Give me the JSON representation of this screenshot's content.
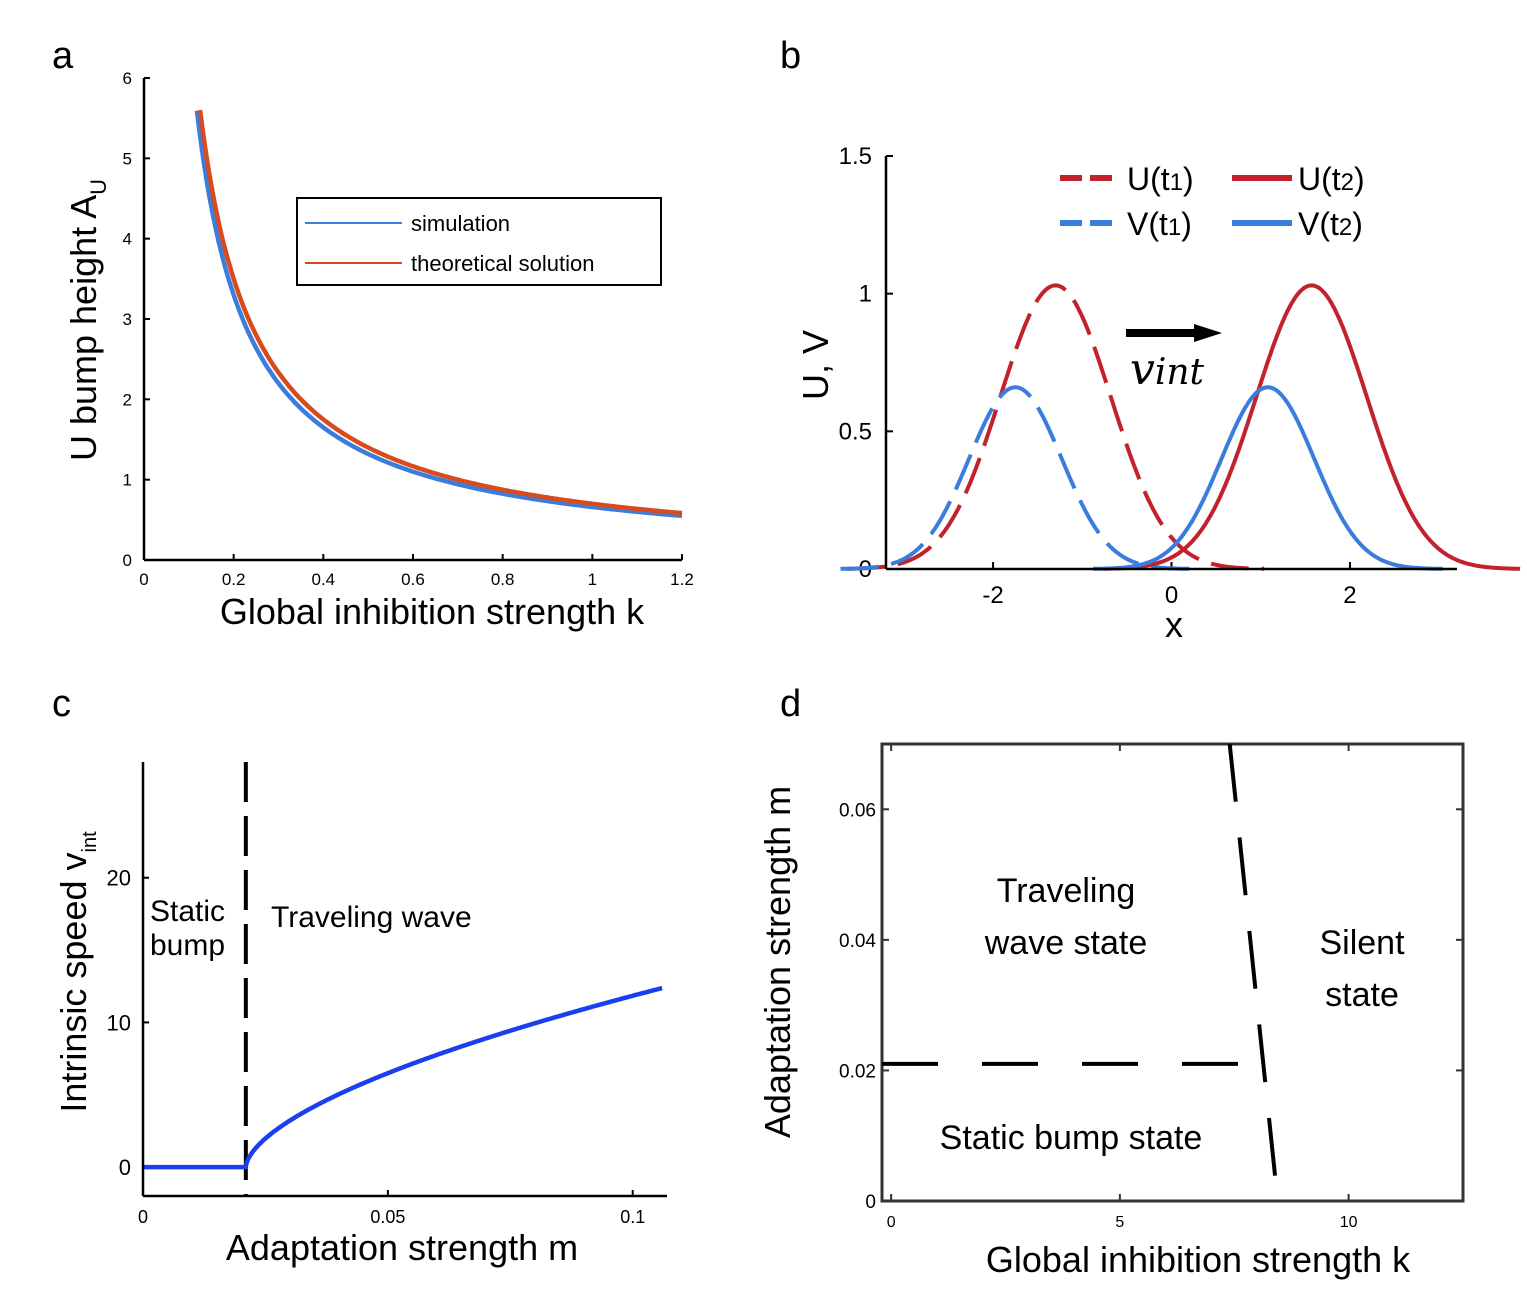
{
  "colors": {
    "blue": "#3b7ddd",
    "red": "#d84b1e",
    "darkred": "#c2222d",
    "curve_blue": "#1a3ef0",
    "legend_blue": "#3b7ddd"
  },
  "chart_data": [
    {
      "panel": "a",
      "type": "line",
      "xlabel": "Global inhibition strength k",
      "ylabel": "U bump height A",
      "ylabel_sub": "U",
      "xlim": [
        0,
        1.2
      ],
      "ylim": [
        0,
        6
      ],
      "xticks": [
        "0",
        "0.2",
        "0.4",
        "0.6",
        "0.8",
        "1",
        "1.2"
      ],
      "yticks": [
        "0",
        "1",
        "2",
        "3",
        "4",
        "5",
        "6"
      ],
      "legend": [
        "simulation",
        "theoretical solution"
      ],
      "series": [
        {
          "name": "simulation",
          "color": "#3b7ddd",
          "formula": "0.66/k",
          "x_start": 0.1,
          "x_end": 1.2
        },
        {
          "name": "theoretical solution",
          "color": "#d84b1e",
          "formula": "0.70/k",
          "x_start": 0.1,
          "x_end": 1.2
        }
      ]
    },
    {
      "panel": "b",
      "type": "line",
      "xlabel": "x",
      "ylabel": "U, V",
      "xlim": [
        -3.2,
        3.2
      ],
      "ylim": [
        0,
        1.5
      ],
      "xticks": [
        "-2",
        "0",
        "2"
      ],
      "yticks": [
        "0",
        "0.5",
        "1",
        "1.5"
      ],
      "annotation": "v",
      "annotation_sub": "int",
      "legend": [
        {
          "label": "U(t",
          "sub": "1",
          "close": ")",
          "style": "dashed",
          "color": "#c2222d"
        },
        {
          "label": "U(t",
          "sub": "2",
          "close": ")",
          "style": "solid",
          "color": "#c2222d"
        },
        {
          "label": "V(t",
          "sub": "1",
          "close": ")",
          "style": "dashed",
          "color": "#3b7ddd"
        },
        {
          "label": "V(t",
          "sub": "2",
          "close": ")",
          "style": "solid",
          "color": "#3b7ddd"
        }
      ],
      "series": [
        {
          "name": "U(t1)",
          "center": -1.3,
          "amplitude": 1.03,
          "width": 0.62,
          "style": "dashed",
          "color": "#c2222d"
        },
        {
          "name": "U(t2)",
          "center": 1.57,
          "amplitude": 1.03,
          "width": 0.62,
          "style": "solid",
          "color": "#c2222d"
        },
        {
          "name": "V(t1)",
          "center": -1.75,
          "amplitude": 0.66,
          "width": 0.52,
          "style": "dashed",
          "color": "#3b7ddd"
        },
        {
          "name": "V(t2)",
          "center": 1.08,
          "amplitude": 0.66,
          "width": 0.52,
          "style": "solid",
          "color": "#3b7ddd"
        }
      ]
    },
    {
      "panel": "c",
      "type": "line",
      "xlabel": "Adaptation strength m",
      "ylabel": "Intrinsic speed v",
      "ylabel_sub": "int",
      "xlim": [
        0,
        0.107
      ],
      "ylim": [
        -2,
        28
      ],
      "xticks": [
        "0",
        "0.05",
        "0.1"
      ],
      "yticks": [
        "0",
        "10",
        "20"
      ],
      "threshold_m": 0.021,
      "region_left": [
        "Static",
        "bump"
      ],
      "region_right": "Traveling wave",
      "series": [
        {
          "name": "speed",
          "color": "#1a3ef0",
          "formula": "v = 0 for m<0.021; v = 54.3*(m-0.021)^0.6 otherwise",
          "x_end": 0.106
        }
      ]
    },
    {
      "panel": "d",
      "type": "phase-diagram",
      "xlabel": "Global inhibition strength k",
      "ylabel": "Adaptation strength m",
      "xlim": [
        -0.2,
        12.5
      ],
      "ylim": [
        0,
        0.07
      ],
      "xticks": [
        "0",
        "5",
        "10"
      ],
      "yticks": [
        "0",
        "0.02",
        "0.04",
        "0.06"
      ],
      "regions": {
        "traveling": [
          "Traveling",
          "wave state"
        ],
        "silent": [
          "Silent",
          "state"
        ],
        "static": "Static bump state"
      },
      "boundaries": {
        "horizontal": {
          "m": 0.021,
          "k_from": -0.2,
          "k_to": 7.8
        },
        "vertical": {
          "from": [
            7.4,
            0.07
          ],
          "to": [
            8.45,
            0.0
          ]
        }
      }
    }
  ],
  "panel_labels": [
    "a",
    "b",
    "c",
    "d"
  ]
}
